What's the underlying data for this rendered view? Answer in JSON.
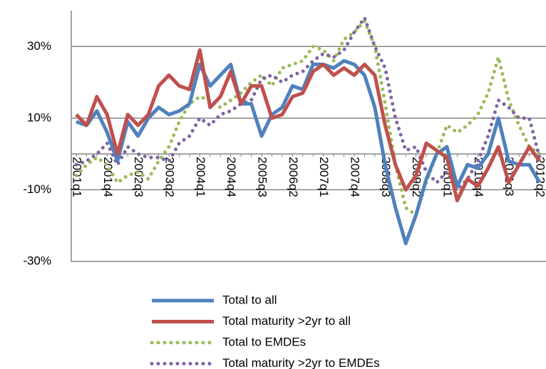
{
  "chart_data": {
    "type": "line",
    "categories": [
      "2001q1",
      null,
      null,
      "2001q4",
      null,
      null,
      "2002q3",
      null,
      null,
      "2003q2",
      null,
      null,
      "2004q1",
      null,
      null,
      "2004q4",
      null,
      null,
      "2005q3",
      null,
      null,
      "2006q2",
      null,
      null,
      "2007q1",
      null,
      null,
      "2007q4",
      null,
      null,
      "2008q3",
      null,
      null,
      "2009q2",
      null,
      null,
      "2010q1",
      null,
      null,
      "2010q4",
      null,
      null,
      "2011q3",
      null,
      null,
      "2012q2"
    ],
    "ylim": [
      -30,
      40
    ],
    "yticks": [
      {
        "value": -30,
        "label": "-30%"
      },
      {
        "value": -10,
        "label": "-10%"
      },
      {
        "value": 10,
        "label": "10%"
      },
      {
        "value": 30,
        "label": "30%"
      }
    ],
    "grid": true,
    "series": [
      {
        "name": "Total to all",
        "color": "#4f81bd",
        "style": "solid",
        "values": [
          9,
          8,
          12,
          6,
          -2,
          9,
          5,
          10,
          13,
          11,
          12,
          14,
          25,
          19,
          22,
          25,
          14,
          14,
          5,
          11,
          13,
          19,
          18,
          25,
          25,
          24,
          26,
          25,
          22,
          13,
          -3,
          -15,
          -25,
          -17,
          -7,
          0,
          2,
          -9,
          -3,
          -4,
          0,
          10,
          -2,
          -3,
          -3,
          -8
        ]
      },
      {
        "name": "Total maturity >2yr to all",
        "color": "#c0504d",
        "style": "solid",
        "values": [
          11,
          8,
          16,
          11,
          0,
          11,
          8,
          11,
          19,
          22,
          19,
          18,
          29,
          13,
          16,
          23,
          14,
          19,
          19,
          10,
          11,
          16,
          17,
          23,
          25,
          22,
          24,
          22,
          25,
          22,
          8,
          -3,
          -10,
          -6,
          3,
          1,
          -1,
          -13,
          -7,
          -9,
          -4,
          2,
          -8,
          -3,
          2,
          -2
        ]
      },
      {
        "name": "Total to EMDEs",
        "color": "#9bbb59",
        "style": "dotted",
        "values": [
          -6,
          -3,
          -1,
          -3,
          -8,
          -6,
          -5,
          -7,
          -2,
          2,
          9,
          14,
          16,
          15,
          13,
          15,
          17,
          20,
          22,
          19,
          24,
          25,
          26,
          30,
          29,
          26,
          32,
          34,
          37,
          30,
          14,
          -3,
          -15,
          -17,
          -8,
          0,
          8,
          6,
          8,
          11,
          17,
          27,
          15,
          8,
          2,
          0
        ]
      },
      {
        "name": "Total maturity >2yr to EMDEs",
        "color": "#8064a2",
        "style": "dotted",
        "values": [
          -3,
          -2,
          0,
          3,
          -3,
          2,
          0,
          -1,
          -1,
          -2,
          3,
          5,
          10,
          8,
          11,
          12,
          14,
          15,
          21,
          22,
          20,
          22,
          23,
          26,
          28,
          27,
          29,
          34,
          38,
          30,
          24,
          10,
          1,
          2,
          -5,
          -8,
          -5,
          -10,
          -7,
          -2,
          5,
          15,
          13,
          10,
          10,
          -1
        ]
      }
    ]
  }
}
